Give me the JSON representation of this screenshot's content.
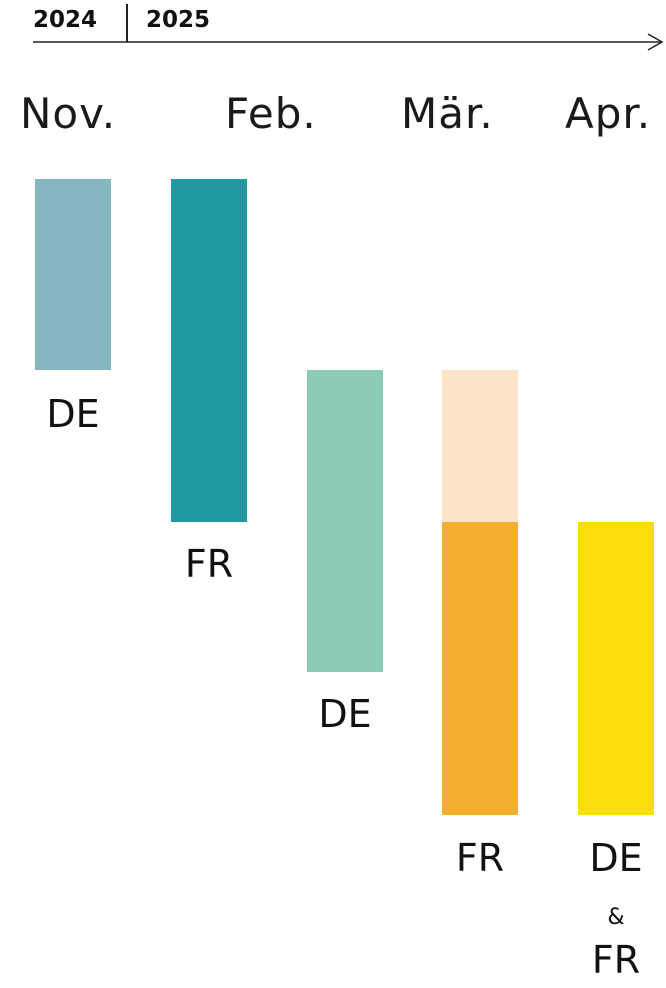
{
  "timeline": {
    "years": [
      "2024",
      "2025"
    ],
    "months": [
      "Nov.",
      "Feb.",
      "Mär.",
      "Apr."
    ]
  },
  "colors": {
    "de_nov": "#86b6c0",
    "fr_feb": "#2299a1",
    "de_mar": "#8ccbb7",
    "pending_mar": "#fde5c9",
    "fr_mar": "#f4ae30",
    "defr_apr": "#fade0a",
    "axis": "#222222"
  },
  "bars": [
    {
      "label": "DE"
    },
    {
      "label": "FR"
    },
    {
      "label": "DE"
    },
    {
      "label": "FR"
    },
    {
      "label": "DE",
      "conjunction": "&",
      "label2": "FR"
    }
  ]
}
